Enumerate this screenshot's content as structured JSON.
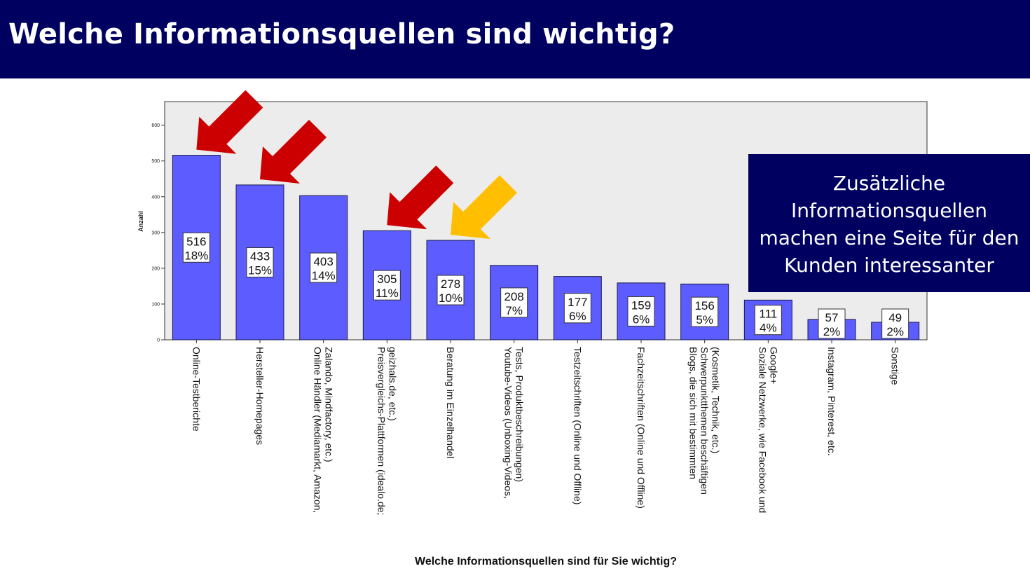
{
  "slide": {
    "title": "Welche Informationsquellen sind wichtig?",
    "callout_lines": [
      "Zusätzliche",
      "Informationsquellen",
      "machen eine Seite für den",
      "Kunden interessanter"
    ]
  },
  "colors": {
    "header_bg": "#000060",
    "bar_fill": "#5c5cff",
    "plot_bg": "#ececec",
    "arrow_red": "#cc0000",
    "arrow_yellow": "#ffbf00"
  },
  "chart_data": {
    "type": "bar",
    "title": "",
    "xlabel": "Welche Informationsquellen sind für Sie wichtig?",
    "ylabel": "Anzahl",
    "ylim": [
      0,
      666
    ],
    "yticks": [
      0,
      100,
      200,
      300,
      400,
      500,
      600
    ],
    "grid": false,
    "categories": [
      [
        "Online-Testberichte"
      ],
      [
        "Hersteller-Homepages"
      ],
      [
        "Online Händler (Mediamarkt, Amazon,",
        "Zalando, Mindfactory, etc.)"
      ],
      [
        "Preisvergleichs-Plattformen (idealo.de;",
        "geizhals.de, etc.)"
      ],
      [
        "Beratung im Einzelhandel"
      ],
      [
        "Youtube-Videos (Unboxing-Videos,",
        "Tests, Produktbeschreibungen)"
      ],
      [
        "Testzeitschriften (Online und Offline)"
      ],
      [
        "Fachzeitschriften (Online und Offline)"
      ],
      [
        "Blogs, die sich mit bestimmten",
        "Schwerpunktthemen beschäftigen",
        "(Kosmetik, Technik, etc.)"
      ],
      [
        "Soziale Netzwerke, wie Facebook und",
        "Google+"
      ],
      [
        "Instagram, Pinterest, etc."
      ],
      [
        "Sonstige"
      ]
    ],
    "values": [
      516,
      433,
      403,
      305,
      278,
      208,
      177,
      159,
      156,
      111,
      57,
      49
    ],
    "percent_labels": [
      "18%",
      "15%",
      "14%",
      "11%",
      "10%",
      "7%",
      "6%",
      "6%",
      "5%",
      "4%",
      "2%",
      "2%"
    ],
    "highlight_arrows": [
      {
        "bar": 0,
        "color": "red"
      },
      {
        "bar": 1,
        "color": "red"
      },
      {
        "bar": 3,
        "color": "red"
      },
      {
        "bar": 4,
        "color": "yellow"
      }
    ]
  }
}
